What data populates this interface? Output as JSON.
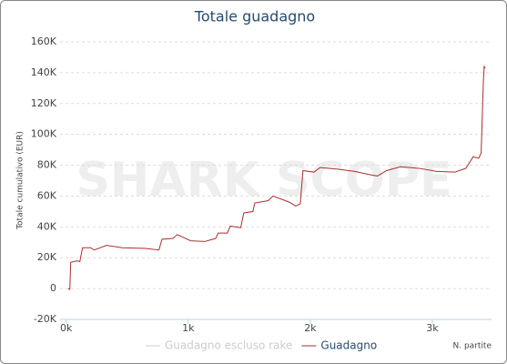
{
  "chart_data": {
    "type": "line",
    "title": "Totale guadagno",
    "watermark": "SHARK SCOPE",
    "y_label": "Totale cumulativo (EUR)",
    "x_label": "N. partite",
    "x": [
      15,
      30,
      37,
      90,
      112,
      134,
      200,
      230,
      330,
      460,
      650,
      760,
      785,
      875,
      910,
      1020,
      1135,
      1225,
      1245,
      1320,
      1345,
      1430,
      1455,
      1530,
      1545,
      1655,
      1695,
      1830,
      1880,
      1918,
      1940,
      2030,
      2080,
      2215,
      2365,
      2480,
      2550,
      2625,
      2740,
      2890,
      3035,
      3185,
      3275,
      3335,
      3380,
      3400,
      3418,
      3425,
      3433
    ],
    "series": [
      {
        "name": "Guadagno escluso rake",
        "color": "#cccccc",
        "visible": false,
        "values": [
          null,
          null,
          null,
          null,
          null,
          null,
          null,
          null,
          null,
          null,
          null,
          null,
          null,
          null,
          null,
          null,
          null,
          null,
          null,
          null,
          null,
          null,
          null,
          null,
          null,
          null,
          null,
          null,
          null,
          null,
          null,
          null,
          null,
          null,
          null,
          null,
          null,
          null,
          null,
          null,
          null,
          null,
          null,
          null,
          null,
          null,
          null,
          null,
          null
        ]
      },
      {
        "name": "Guadagno",
        "color": "#aa2e2e",
        "visible": true,
        "values": [
          0,
          -500,
          17000,
          18000,
          17500,
          26500,
          26500,
          25000,
          28000,
          26500,
          26000,
          25000,
          32000,
          32500,
          35000,
          31000,
          30500,
          32500,
          36000,
          36000,
          40500,
          39500,
          49000,
          50000,
          55500,
          57000,
          60000,
          56000,
          53500,
          55000,
          76500,
          75500,
          78500,
          77500,
          76000,
          74000,
          73000,
          76500,
          79000,
          78000,
          76000,
          75500,
          78000,
          85500,
          84500,
          88000,
          134000,
          144000,
          142800
        ]
      }
    ],
    "xlim": [
      -50,
      3485
    ],
    "xticks": [
      {
        "value": 0,
        "label": "0k"
      },
      {
        "value": 1000,
        "label": "1k"
      },
      {
        "value": 2000,
        "label": "2k"
      },
      {
        "value": 3000,
        "label": "3k"
      }
    ],
    "ylim": [
      -20000,
      160000
    ],
    "yticks": [
      {
        "value": -20000,
        "label": "-20K"
      },
      0,
      {
        "value": 20000,
        "label": "20K"
      },
      {
        "value": 40000,
        "label": "40K"
      },
      {
        "value": 60000,
        "label": "60K"
      },
      {
        "value": 80000,
        "label": "80K"
      },
      {
        "value": 100000,
        "label": "100K"
      },
      {
        "value": 120000,
        "label": "120K"
      },
      {
        "value": 140000,
        "label": "140K"
      },
      {
        "value": 160000,
        "label": "160K"
      }
    ],
    "grid": true
  }
}
